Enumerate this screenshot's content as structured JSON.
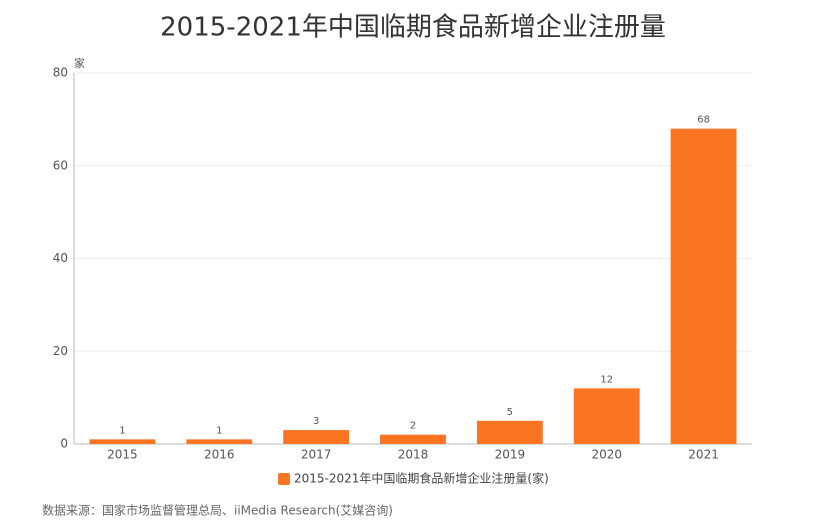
{
  "chart_data": {
    "type": "bar",
    "title": "2015-2021年中国临期食品新增企业注册量",
    "y_unit": "家",
    "categories": [
      "2015",
      "2016",
      "2017",
      "2018",
      "2019",
      "2020",
      "2021"
    ],
    "series": [
      {
        "name": "2015-2021年中国临期食品新增企业注册量(家)",
        "color": "#fa7521",
        "values": [
          1,
          1,
          3,
          2,
          5,
          12,
          68
        ]
      }
    ],
    "ylim": [
      0,
      80
    ],
    "yticks": [
      0,
      20,
      40,
      60,
      80
    ],
    "grid": true,
    "legend": "bottom",
    "source": "数据来源：国家市场监督管理总局、iiMedia Research(艾媒咨询)"
  }
}
